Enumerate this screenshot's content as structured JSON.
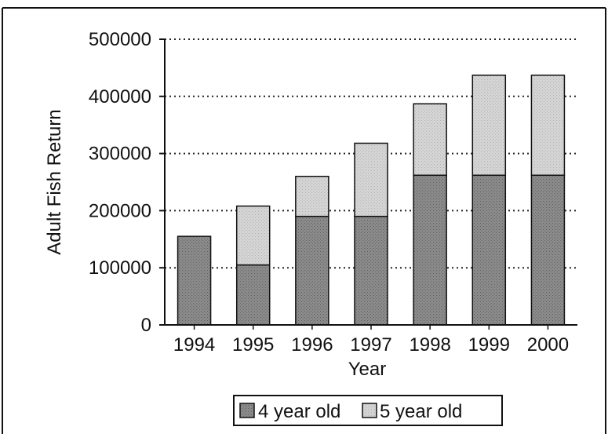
{
  "chart_data": {
    "type": "bar",
    "stacked": true,
    "categories": [
      "1994",
      "1995",
      "1996",
      "1997",
      "1998",
      "1999",
      "2000"
    ],
    "series": [
      {
        "name": "4 year old",
        "values": [
          155000,
          105000,
          190000,
          190000,
          262000,
          262000,
          262000
        ]
      },
      {
        "name": "5 year old",
        "values": [
          0,
          103000,
          70000,
          128000,
          125000,
          175000,
          175000
        ]
      }
    ],
    "title": "",
    "xlabel": "Year",
    "ylabel": "Adult Fish Return",
    "ylim": [
      0,
      500000
    ],
    "yticks": [
      0,
      100000,
      200000,
      300000,
      400000,
      500000
    ],
    "ytick_labels": [
      "0",
      "100000",
      "200000",
      "300000",
      "400000",
      "500000"
    ],
    "grid": "horizontal dotted",
    "legend_position": "bottom",
    "colors": {
      "series_4yr": "#8a8a8a",
      "series_5yr": "#cfcfcf",
      "bar_outline": "#111111",
      "grid": "#222222",
      "frame": "#111111"
    }
  }
}
